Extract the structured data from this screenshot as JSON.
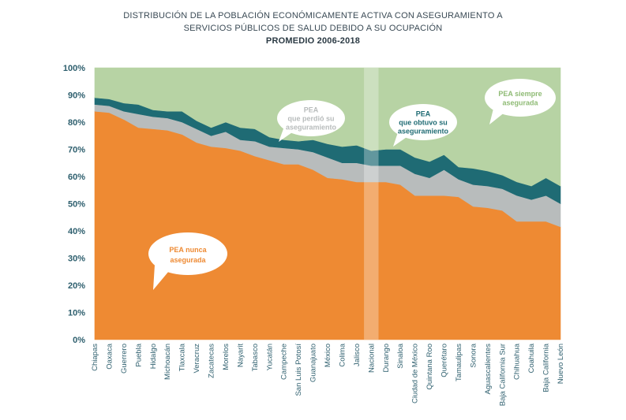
{
  "title": {
    "line1": "DISTRIBUCIÓN DE LA POBLACIÓN ECONÓMICAMENTE ACTIVA CON ASEGURAMIENTO A",
    "line2": "SERVICIOS PÚBLICOS DE SALUD DEBIDO A SU OCUPACIÓN",
    "line3": "PROMEDIO 2006-2018"
  },
  "colors": {
    "never": "#ee8a33",
    "lost": "#b8bcbc",
    "gained": "#1f6b74",
    "always": "#b7d3a4",
    "highlight": "#ffffff"
  },
  "labels": {
    "never": [
      "PEA nunca",
      "asegurada"
    ],
    "lost": [
      "PEA",
      "que perdió su",
      "aseguramiento"
    ],
    "gained": [
      "PEA",
      "que obtuvo su",
      "aseguramiento"
    ],
    "always": [
      "PEA siempre",
      "asegurada"
    ]
  },
  "chart_data": {
    "type": "area",
    "stacked": true,
    "title": "",
    "xlabel": "",
    "ylabel": "",
    "ylim": [
      0,
      100
    ],
    "yticks": [
      "0%",
      "10%",
      "20%",
      "30%",
      "40%",
      "50%",
      "60%",
      "70%",
      "80%",
      "90%",
      "100%"
    ],
    "highlight_category": "Nacional",
    "categories": [
      "Chiapas",
      "Oaxaca",
      "Guerrero",
      "Puebla",
      "Hidalgo",
      "Michoacán",
      "Tlaxcala",
      "Veracruz",
      "Zacatecas",
      "Morelos",
      "Nayarit",
      "Tabasco",
      "Yucatán",
      "Campeche",
      "San Luis Potosí",
      "Guanajuato",
      "México",
      "Colima",
      "Jalisco",
      "Nacional",
      "Durango",
      "Sinaloa",
      "Ciudad de México",
      "Quintana Roo",
      "Querétaro",
      "Tamaulipas",
      "Sonora",
      "Aguascalientes",
      "Baja California Sur",
      "Chihuahua",
      "Coahuila",
      "Baja California",
      "Nuevo León"
    ],
    "series": [
      {
        "name": "PEA nunca asegurada",
        "values": [
          84,
          83.5,
          81,
          78,
          77.5,
          77,
          75.5,
          72.5,
          71,
          70.5,
          69.5,
          67.5,
          66,
          64.5,
          64.5,
          62.5,
          59.5,
          59,
          58,
          58,
          58,
          57,
          53,
          53,
          53,
          52.5,
          49,
          48.5,
          47.5,
          43.5,
          43.5,
          43.5,
          41.5
        ]
      },
      {
        "name": "PEA que perdió su aseguramiento",
        "values": [
          2.5,
          2.5,
          3,
          5,
          4.5,
          4.5,
          4.5,
          5,
          4,
          6,
          4,
          5.5,
          5,
          6,
          5.5,
          6.5,
          7.5,
          6,
          7,
          6,
          6,
          7,
          8,
          6.5,
          9.5,
          6.5,
          8,
          8,
          8,
          9.5,
          8,
          9.5,
          8.5
        ]
      },
      {
        "name": "PEA que obtuvo su aseguramiento",
        "values": [
          2.5,
          2.5,
          3,
          3.5,
          2.5,
          2.5,
          4,
          3,
          3,
          3.5,
          4.5,
          4.5,
          3.5,
          3,
          3,
          4.5,
          5,
          6,
          6.5,
          5.5,
          6,
          6,
          6,
          6,
          5.5,
          4.5,
          6,
          5.5,
          5,
          5,
          5,
          6.5,
          6.5
        ]
      },
      {
        "name": "PEA siempre asegurada",
        "values": [
          11,
          11.5,
          13,
          13.5,
          15.5,
          16,
          16,
          19.5,
          22,
          20,
          22,
          22.5,
          25.5,
          26.5,
          27,
          26.5,
          28,
          29,
          28.5,
          30.5,
          30,
          30,
          33,
          34.5,
          32,
          36.5,
          37,
          38,
          39.5,
          42,
          43.5,
          40.5,
          43.5
        ]
      }
    ]
  }
}
